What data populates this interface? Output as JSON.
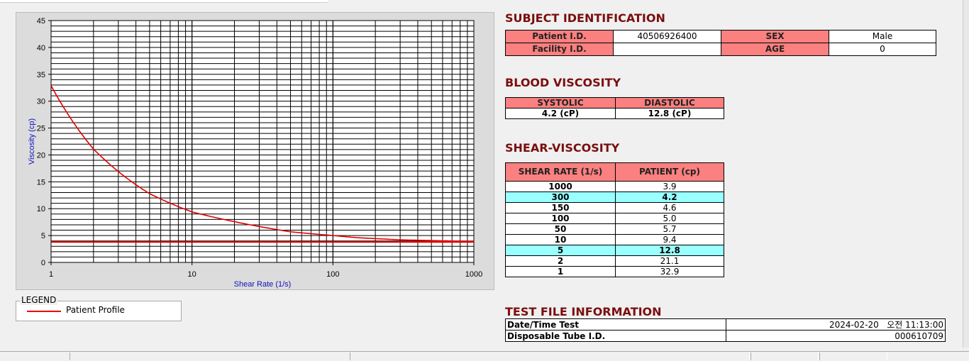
{
  "chart_data": {
    "type": "line",
    "xlabel": "Shear Rate (1/s)",
    "ylabel": "Viscosity (cp)",
    "xscale": "log",
    "xlim": [
      1,
      1000
    ],
    "ylim": [
      0,
      45
    ],
    "xticks": [
      "1",
      "10",
      "100",
      "1000"
    ],
    "yticks": [
      "0",
      "5",
      "10",
      "15",
      "20",
      "25",
      "30",
      "35",
      "40",
      "45"
    ],
    "grid": true,
    "line_color": "#e00000",
    "series": [
      {
        "name": "Patient Profile",
        "x": [
          1,
          2,
          5,
          10,
          50,
          100,
          150,
          300,
          1000
        ],
        "y": [
          32.9,
          21.1,
          12.8,
          9.4,
          5.7,
          5.0,
          4.6,
          4.2,
          3.9
        ]
      },
      {
        "x": [
          1,
          1000
        ],
        "y": [
          3.8,
          3.8
        ]
      }
    ]
  },
  "legend": {
    "title": "LEGEND",
    "entry": "Patient Profile"
  },
  "subject": {
    "title": "SUBJECT IDENTIFICATION",
    "patient_id_label": "Patient I.D.",
    "patient_id": "40506926400",
    "sex_label": "SEX",
    "sex": "Male",
    "facility_label": "Facility I.D.",
    "facility": "",
    "age_label": "AGE",
    "age": "0"
  },
  "blood": {
    "title": "BLOOD VISCOSITY",
    "systolic_label": "SYSTOLIC",
    "diastolic_label": "DIASTOLIC",
    "systolic": "4.2 (cP)",
    "diastolic": "12.8 (cP)"
  },
  "shear": {
    "title": "SHEAR-VISCOSITY",
    "col1": "SHEAR RATE (1/s)",
    "col2": "PATIENT (cp)",
    "rows": [
      [
        "1000",
        "3.9",
        false
      ],
      [
        "300",
        "4.2",
        true
      ],
      [
        "150",
        "4.6",
        false
      ],
      [
        "100",
        "5.0",
        false
      ],
      [
        "50",
        "5.7",
        false
      ],
      [
        "10",
        "9.4",
        false
      ],
      [
        "5",
        "12.8",
        true
      ],
      [
        "2",
        "21.1",
        false
      ],
      [
        "1",
        "32.9",
        false
      ]
    ]
  },
  "testfile": {
    "title": "TEST FILE INFORMATION",
    "date_label": "Date/Time Test",
    "date": "2024-02-20   오전 11:13:00",
    "tube_label": "Disposable Tube I.D.",
    "tube": "000610709"
  }
}
